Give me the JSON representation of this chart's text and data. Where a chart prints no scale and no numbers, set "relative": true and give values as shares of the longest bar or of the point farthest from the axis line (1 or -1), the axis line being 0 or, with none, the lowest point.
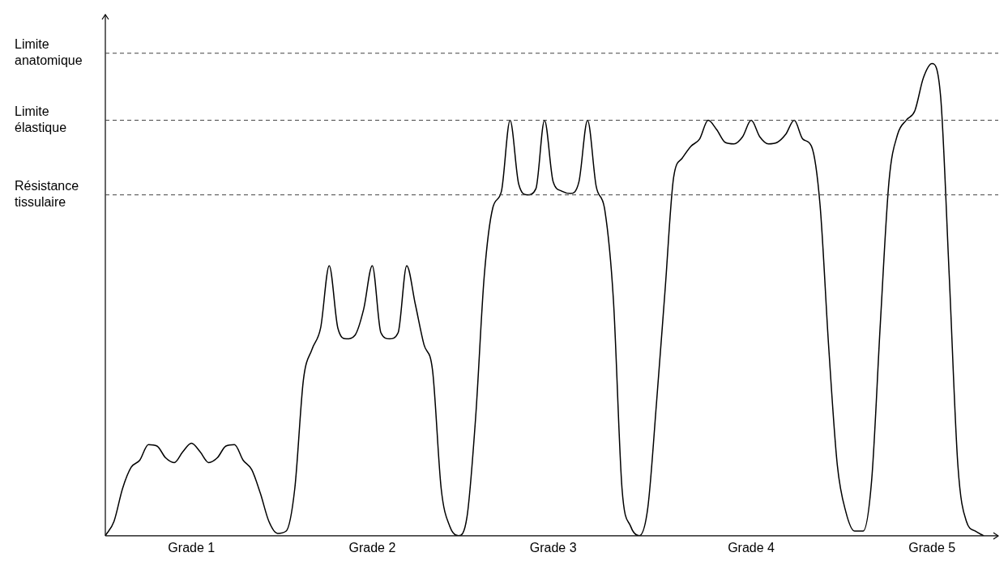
{
  "chart_data": {
    "type": "line",
    "relative": true,
    "legend": false,
    "grid": false,
    "marker": "none",
    "line_style": "solid",
    "categories": [
      null,
      null,
      null,
      null,
      null,
      null,
      null,
      null,
      null,
      null,
      "Grade 1",
      null,
      null,
      null,
      null,
      null,
      null,
      null,
      null,
      null,
      null,
      null,
      null,
      null,
      null,
      null,
      null,
      null,
      null,
      null,
      null,
      "Grade 2",
      null,
      null,
      null,
      null,
      null,
      null,
      null,
      null,
      null,
      null,
      null,
      null,
      null,
      null,
      null,
      null,
      null,
      null,
      null,
      null,
      "Grade 3",
      null,
      null,
      null,
      null,
      null,
      null,
      null,
      null,
      null,
      null,
      null,
      null,
      null,
      null,
      null,
      null,
      null,
      null,
      null,
      null,
      null,
      null,
      "Grade 4",
      null,
      null,
      null,
      null,
      null,
      null,
      null,
      null,
      null,
      null,
      null,
      null,
      null,
      null,
      null,
      null,
      null,
      null,
      null,
      null,
      "Grade 5",
      null,
      null,
      null,
      null,
      null,
      null
    ],
    "series": [
      {
        "color": "#000000",
        "values": [
          0,
          0.03,
          0.1,
          0.145,
          0.16,
          0.193,
          0.19,
          0.165,
          0.155,
          0.178,
          0.196,
          0.178,
          0.155,
          0.165,
          0.19,
          0.193,
          0.16,
          0.14,
          0.09,
          0.03,
          0.005,
          0.01,
          0.1,
          0.33,
          0.395,
          0.44,
          0.572,
          0.44,
          0.417,
          0.425,
          0.48,
          0.572,
          0.43,
          0.417,
          0.43,
          0.572,
          0.49,
          0.405,
          0.35,
          0.1,
          0.02,
          0,
          0.04,
          0.25,
          0.55,
          0.695,
          0.73,
          0.88,
          0.745,
          0.722,
          0.735,
          0.88,
          0.75,
          0.73,
          0.725,
          0.75,
          0.88,
          0.74,
          0.69,
          0.5,
          0.1,
          0.02,
          0,
          0.06,
          0.28,
          0.52,
          0.76,
          0.8,
          0.825,
          0.84,
          0.88,
          0.86,
          0.833,
          0.83,
          0.845,
          0.88,
          0.845,
          0.83,
          0.833,
          0.85,
          0.88,
          0.84,
          0.825,
          0.7,
          0.4,
          0.15,
          0.05,
          0.01,
          0.01,
          0.12,
          0.45,
          0.75,
          0.85,
          0.88,
          0.9,
          0.97,
          1.0,
          0.93,
          0.55,
          0.15,
          0.03,
          0.01,
          0
        ]
      }
    ],
    "ref_lines": [
      {
        "axis": "y",
        "value": 1.022,
        "label": "Limite anatomique",
        "color": "#404040",
        "line_style": "dashed"
      },
      {
        "axis": "y",
        "value": 0.88,
        "label": "Limite élastique",
        "color": "#404040",
        "line_style": "dashed"
      },
      {
        "axis": "y",
        "value": 0.722,
        "label": "Résistance tissulaire",
        "color": "#404040",
        "line_style": "dashed"
      }
    ]
  }
}
